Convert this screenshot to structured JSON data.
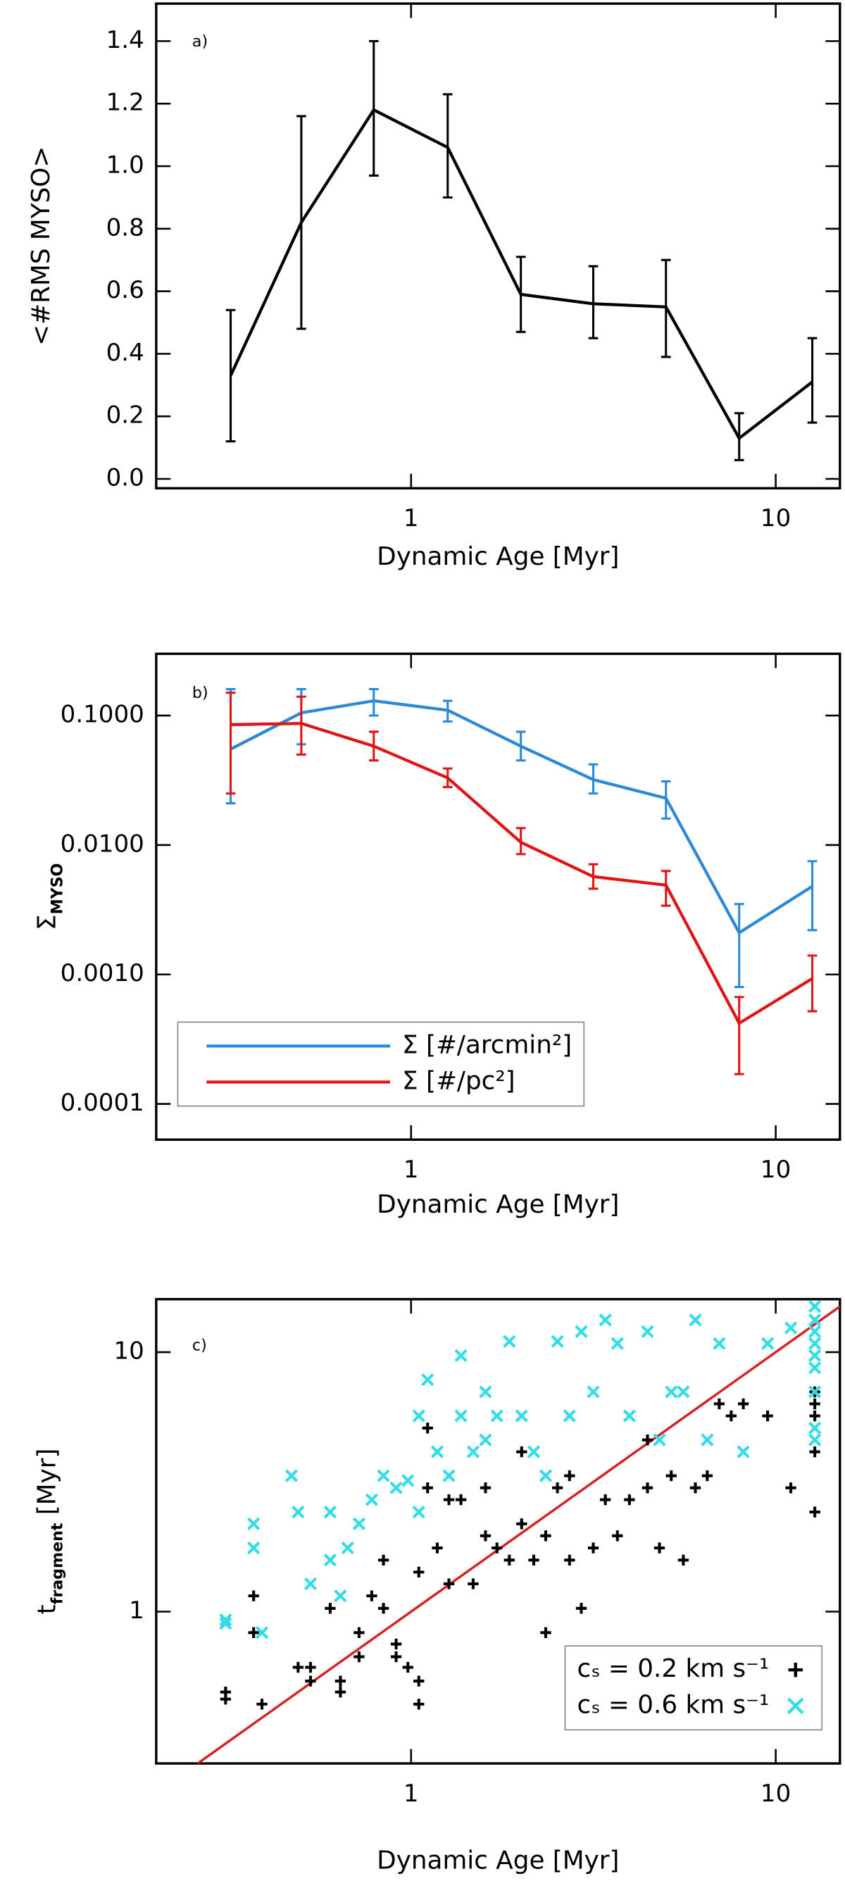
{
  "chart_data": [
    {
      "type": "line",
      "annotation": "a)",
      "xlabel": "Dynamic Age [Myr]",
      "ylabel": [
        {
          "text": "<#RMS MYSO>"
        }
      ],
      "logx": true,
      "logy": false,
      "xlim": [
        0.2,
        15
      ],
      "xticks": [
        1,
        10
      ],
      "ylim": [
        -0.03,
        1.52
      ],
      "yticks": [
        {
          "value": 0,
          "label": "0.0"
        },
        0.2,
        0.4,
        0.6,
        0.8,
        {
          "value": 1,
          "label": "1.0"
        },
        1.2,
        1.4
      ],
      "x": [
        0.32,
        0.5,
        0.79,
        1.26,
        2.0,
        3.16,
        5.0,
        7.94,
        12.6
      ],
      "series": [
        {
          "color": "#000000",
          "values": [
            0.33,
            0.82,
            1.18,
            1.06,
            0.59,
            0.56,
            0.55,
            0.13,
            0.31
          ],
          "lower": [
            0.12,
            0.48,
            0.97,
            0.9,
            0.47,
            0.45,
            0.39,
            0.06,
            0.18
          ],
          "upper": [
            0.54,
            1.16,
            1.4,
            1.23,
            0.71,
            0.68,
            0.7,
            0.21,
            0.45
          ]
        }
      ]
    },
    {
      "type": "line",
      "annotation": "b)",
      "xlabel": "Dynamic Age [Myr]",
      "ylabel": [
        {
          "text": "Σ"
        },
        {
          "text": "MYSO",
          "sub": true
        }
      ],
      "logx": true,
      "logy": true,
      "xlim": [
        0.2,
        15
      ],
      "xticks": [
        1,
        10
      ],
      "ylim": [
        5.3e-05,
        0.3
      ],
      "yticks": [
        {
          "value": 0.0001,
          "label": "0.0001"
        },
        {
          "value": 0.001,
          "label": "0.0010"
        },
        {
          "value": 0.01,
          "label": "0.0100"
        },
        {
          "value": 0.1,
          "label": "0.1000"
        }
      ],
      "legend": "lower left",
      "x": [
        0.32,
        0.5,
        0.79,
        1.26,
        2.0,
        3.16,
        5.0,
        7.94,
        12.6
      ],
      "series": [
        {
          "name": "Σ [#/arcmin²]",
          "color": "#2a8ad8",
          "values": [
            0.055,
            0.105,
            0.13,
            0.11,
            0.058,
            0.032,
            0.023,
            0.0021,
            0.0048
          ],
          "lower": [
            0.021,
            0.06,
            0.1,
            0.09,
            0.045,
            0.025,
            0.016,
            0.0008,
            0.0022
          ],
          "upper": [
            0.16,
            0.16,
            0.16,
            0.13,
            0.075,
            0.042,
            0.031,
            0.0035,
            0.0075
          ]
        },
        {
          "name": "Σ [#/pc²]",
          "color": "#e01414",
          "values": [
            0.085,
            0.087,
            0.058,
            0.033,
            0.0105,
            0.0057,
            0.0049,
            0.00042,
            0.00093
          ],
          "lower": [
            0.025,
            0.05,
            0.045,
            0.028,
            0.0085,
            0.0046,
            0.0034,
            0.00017,
            0.00052
          ],
          "upper": [
            0.15,
            0.14,
            0.075,
            0.039,
            0.0135,
            0.0071,
            0.0063,
            0.00067,
            0.0014
          ]
        }
      ]
    },
    {
      "type": "scatter",
      "annotation": "c)",
      "xlabel": "Dynamic Age [Myr]",
      "ylabel": [
        {
          "text": "t"
        },
        {
          "text": "fragment",
          "sub": true
        },
        {
          "text": " [Myr]"
        }
      ],
      "logx": true,
      "logy": true,
      "xlim": [
        0.2,
        15
      ],
      "xticks": [
        1,
        10
      ],
      "ylim": [
        0.26,
        16
      ],
      "yticks": [
        1,
        10
      ],
      "legend": "lower right",
      "reference_line": {
        "color": "#d62020"
      },
      "series": [
        {
          "name": "cₛ = 0.2 km s⁻¹",
          "color": "#000000",
          "marker": "plus",
          "x": [
            0.31,
            0.31,
            0.37,
            0.37,
            0.39,
            0.49,
            0.53,
            0.53,
            0.6,
            0.64,
            0.64,
            0.72,
            0.72,
            0.78,
            0.84,
            0.84,
            0.91,
            0.91,
            0.98,
            1.05,
            1.05,
            1.05,
            1.11,
            1.11,
            1.18,
            1.27,
            1.27,
            1.37,
            1.48,
            1.6,
            1.6,
            1.72,
            1.86,
            2.01,
            2.01,
            2.17,
            2.34,
            2.34,
            2.52,
            2.72,
            2.72,
            2.93,
            3.16,
            3.41,
            3.68,
            3.97,
            4.45,
            4.45,
            4.8,
            5.17,
            5.58,
            6.02,
            6.49,
            7.0,
            7.55,
            8.15,
            9.5,
            11.0,
            12.8,
            12.8,
            12.8,
            12.8,
            12.8
          ],
          "values": [
            0.49,
            0.46,
            1.15,
            0.83,
            0.44,
            0.61,
            0.54,
            0.61,
            1.03,
            0.54,
            0.49,
            0.67,
            0.83,
            1.15,
            1.58,
            1.03,
            0.75,
            0.67,
            0.61,
            0.54,
            0.44,
            1.42,
            3.0,
            5.1,
            1.76,
            2.7,
            1.28,
            2.7,
            1.28,
            3.0,
            1.96,
            1.76,
            1.58,
            4.13,
            2.18,
            1.58,
            0.83,
            1.96,
            3.0,
            3.34,
            1.58,
            1.03,
            1.76,
            2.7,
            1.96,
            2.7,
            3.0,
            4.59,
            1.76,
            3.34,
            1.58,
            3.0,
            3.34,
            6.32,
            5.68,
            6.32,
            5.68,
            3.0,
            4.13,
            2.42,
            6.32,
            5.68,
            7.03
          ]
        },
        {
          "name": "cₛ = 0.6 km s⁻¹",
          "color": "#33dde8",
          "marker": "cross",
          "x": [
            0.31,
            0.31,
            0.37,
            0.37,
            0.39,
            0.47,
            0.49,
            0.53,
            0.6,
            0.6,
            0.64,
            0.67,
            0.72,
            0.78,
            0.84,
            0.91,
            0.98,
            1.05,
            1.05,
            1.11,
            1.18,
            1.27,
            1.37,
            1.37,
            1.48,
            1.6,
            1.6,
            1.72,
            1.86,
            2.01,
            2.17,
            2.34,
            2.52,
            2.72,
            2.93,
            3.16,
            3.41,
            3.68,
            3.97,
            4.45,
            4.8,
            5.17,
            5.58,
            6.02,
            6.49,
            7.0,
            8.15,
            9.5,
            11.0,
            12.8,
            12.8,
            12.8,
            12.8,
            12.8,
            12.8,
            12.8,
            12.8,
            12.8
          ],
          "values": [
            0.93,
            0.9,
            1.76,
            2.18,
            0.83,
            3.34,
            2.42,
            1.28,
            1.58,
            2.42,
            1.15,
            1.76,
            2.18,
            2.7,
            3.34,
            3.0,
            3.2,
            5.68,
            2.42,
            7.83,
            4.13,
            3.34,
            9.7,
            5.68,
            4.13,
            7.03,
            4.59,
            5.68,
            11.0,
            5.68,
            4.13,
            3.34,
            11.0,
            5.68,
            12.0,
            7.03,
            13.3,
            10.8,
            5.68,
            12.0,
            4.59,
            7.03,
            7.03,
            13.3,
            4.59,
            10.8,
            4.13,
            10.8,
            12.4,
            13.3,
            12.0,
            10.8,
            9.7,
            8.7,
            7.03,
            5.1,
            4.59,
            15.0
          ]
        }
      ]
    }
  ]
}
